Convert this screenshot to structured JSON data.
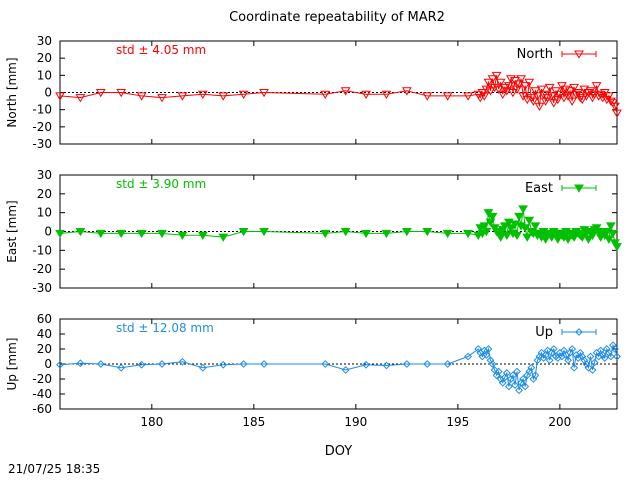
{
  "figure_title": "Coordinate repeatability of MAR2",
  "timestamp": "21/07/25 18:35",
  "chart_data": [
    {
      "type": "line",
      "title": "",
      "xlabel": "",
      "ylabel": "North [mm]",
      "xlim": [
        175.5,
        202.8
      ],
      "ylim": [
        -30,
        30
      ],
      "yticks": [
        -30,
        -20,
        -10,
        0,
        10,
        20,
        30
      ],
      "xticks": [
        180,
        185,
        190,
        195,
        200
      ],
      "show_xtick_labels": false,
      "std_label": "std ± 4.05 mm",
      "color": "#ff0000",
      "marker": "triangle-down-open",
      "legend": "top-right",
      "zero_line": true,
      "series": [
        {
          "name": "North",
          "x": [
            175.5,
            176.5,
            177.5,
            178.5,
            179.5,
            180.5,
            181.5,
            182.5,
            183.5,
            184.5,
            185.5,
            188.5,
            189.5,
            190.5,
            191.5,
            192.5,
            193.5,
            194.5,
            195.5,
            196.0,
            196.1,
            196.2,
            196.3,
            196.4,
            196.5,
            196.6,
            196.7,
            196.8,
            196.9,
            197.0,
            197.1,
            197.2,
            197.3,
            197.4,
            197.5,
            197.6,
            197.7,
            197.8,
            197.9,
            198.0,
            198.1,
            198.2,
            198.3,
            198.4,
            198.5,
            198.6,
            198.7,
            198.8,
            198.9,
            199.0,
            199.1,
            199.2,
            199.3,
            199.4,
            199.5,
            199.6,
            199.7,
            199.8,
            199.9,
            200.0,
            200.1,
            200.2,
            200.3,
            200.4,
            200.5,
            200.6,
            200.7,
            200.8,
            200.9,
            201.0,
            201.1,
            201.2,
            201.3,
            201.4,
            201.5,
            201.6,
            201.7,
            201.8,
            201.9,
            202.0,
            202.1,
            202.2,
            202.3,
            202.4,
            202.5,
            202.6,
            202.7,
            202.8
          ],
          "y": [
            -2,
            -3,
            0,
            0,
            -2,
            -3,
            -2,
            -1,
            -2,
            -1,
            0,
            -1,
            1,
            -1,
            -1,
            1,
            -2,
            -2,
            -2,
            -1,
            -3,
            0,
            -2,
            2,
            6,
            1,
            8,
            3,
            10,
            2,
            6,
            -1,
            3,
            1,
            4,
            8,
            0,
            7,
            2,
            5,
            8,
            -2,
            4,
            -4,
            6,
            -3,
            -5,
            1,
            -2,
            -8,
            2,
            -1,
            -5,
            -3,
            3,
            -2,
            -6,
            1,
            -4,
            -1,
            4,
            -3,
            2,
            -2,
            1,
            -5,
            3,
            -1,
            0,
            -3,
            -4,
            2,
            -2,
            0,
            1,
            -3,
            -1,
            4,
            -2,
            -1,
            -3,
            0,
            -4,
            -2,
            -5,
            -6,
            -8,
            -12
          ]
        }
      ]
    },
    {
      "type": "line",
      "title": "",
      "xlabel": "",
      "ylabel": "East [mm]",
      "xlim": [
        175.5,
        202.8
      ],
      "ylim": [
        -30,
        30
      ],
      "yticks": [
        -30,
        -20,
        -10,
        0,
        10,
        20,
        30
      ],
      "xticks": [
        180,
        185,
        190,
        195,
        200
      ],
      "show_xtick_labels": false,
      "std_label": "std ± 3.90 mm",
      "color": "#00c000",
      "marker": "triangle-down-filled",
      "legend": "top-right",
      "zero_line": true,
      "series": [
        {
          "name": "East",
          "x": [
            175.5,
            176.5,
            177.5,
            178.5,
            179.5,
            180.5,
            181.5,
            182.5,
            183.5,
            184.5,
            185.5,
            188.5,
            189.5,
            190.5,
            191.5,
            192.5,
            193.5,
            194.5,
            195.5,
            196.0,
            196.1,
            196.2,
            196.3,
            196.4,
            196.5,
            196.6,
            196.7,
            196.8,
            196.9,
            197.0,
            197.1,
            197.2,
            197.3,
            197.4,
            197.5,
            197.6,
            197.7,
            197.8,
            197.9,
            198.0,
            198.1,
            198.2,
            198.3,
            198.4,
            198.5,
            198.6,
            198.7,
            198.8,
            198.9,
            199.0,
            199.1,
            199.2,
            199.3,
            199.4,
            199.5,
            199.6,
            199.7,
            199.8,
            199.9,
            200.0,
            200.1,
            200.2,
            200.3,
            200.4,
            200.5,
            200.6,
            200.7,
            200.8,
            200.9,
            201.0,
            201.1,
            201.2,
            201.3,
            201.4,
            201.5,
            201.6,
            201.7,
            201.8,
            201.9,
            202.0,
            202.1,
            202.2,
            202.3,
            202.4,
            202.5,
            202.6,
            202.7,
            202.8
          ],
          "y": [
            -1,
            0,
            -1,
            -1,
            -1,
            -1,
            -2,
            -2,
            -3,
            0,
            0,
            -1,
            0,
            -1,
            -1,
            0,
            0,
            -1,
            -1,
            -2,
            2,
            -1,
            3,
            0,
            10,
            5,
            8,
            2,
            0,
            -1,
            -3,
            1,
            3,
            -2,
            5,
            2,
            -1,
            4,
            -2,
            8,
            3,
            12,
            2,
            -3,
            6,
            0,
            -1,
            3,
            -2,
            -1,
            -3,
            0,
            -4,
            -2,
            -1,
            -3,
            0,
            -2,
            -4,
            -1,
            -2,
            -3,
            0,
            -4,
            -1,
            -2,
            -3,
            0,
            -1,
            -2,
            -3,
            1,
            -1,
            -4,
            0,
            -2,
            1,
            2,
            0,
            -3,
            -1,
            -2,
            0,
            -4,
            3,
            -1,
            -6,
            -8
          ]
        }
      ]
    },
    {
      "type": "line",
      "title": "",
      "xlabel": "DOY",
      "ylabel": "Up [mm]",
      "xlim": [
        175.5,
        202.8
      ],
      "ylim": [
        -60,
        60
      ],
      "yticks": [
        -60,
        -40,
        -20,
        0,
        20,
        40,
        60
      ],
      "xticks": [
        180,
        185,
        190,
        195,
        200
      ],
      "show_xtick_labels": true,
      "std_label": "std ± 12.08 mm",
      "color": "#1e8ce6",
      "marker": "diamond-open",
      "legend": "top-right",
      "zero_line": true,
      "series": [
        {
          "name": "Up",
          "x": [
            175.5,
            176.5,
            177.5,
            178.5,
            179.5,
            180.5,
            181.5,
            182.5,
            183.5,
            184.5,
            185.5,
            188.5,
            189.5,
            190.5,
            191.5,
            192.5,
            193.5,
            194.5,
            195.5,
            196.0,
            196.1,
            196.2,
            196.3,
            196.4,
            196.5,
            196.6,
            196.7,
            196.8,
            196.9,
            197.0,
            197.1,
            197.2,
            197.3,
            197.4,
            197.5,
            197.6,
            197.7,
            197.8,
            197.9,
            198.0,
            198.1,
            198.2,
            198.3,
            198.4,
            198.5,
            198.6,
            198.7,
            198.8,
            198.9,
            199.0,
            199.1,
            199.2,
            199.3,
            199.4,
            199.5,
            199.6,
            199.7,
            199.8,
            199.9,
            200.0,
            200.1,
            200.2,
            200.3,
            200.4,
            200.5,
            200.6,
            200.7,
            200.8,
            200.9,
            201.0,
            201.1,
            201.2,
            201.3,
            201.4,
            201.5,
            201.6,
            201.7,
            201.8,
            201.9,
            202.0,
            202.1,
            202.2,
            202.3,
            202.4,
            202.5,
            202.6,
            202.7,
            202.8
          ],
          "y": [
            -1,
            1,
            0,
            -5,
            -1,
            0,
            3,
            -5,
            -1,
            0,
            0,
            0,
            -8,
            -1,
            -2,
            0,
            0,
            0,
            10,
            20,
            15,
            10,
            18,
            12,
            20,
            5,
            0,
            -8,
            -15,
            -10,
            -20,
            -25,
            -18,
            -12,
            -30,
            -20,
            -15,
            -28,
            -10,
            -35,
            -25,
            -20,
            -30,
            -15,
            -10,
            -5,
            -20,
            -15,
            5,
            10,
            15,
            8,
            12,
            18,
            5,
            15,
            20,
            10,
            8,
            15,
            10,
            18,
            12,
            5,
            15,
            20,
            -5,
            12,
            8,
            15,
            10,
            5,
            0,
            -5,
            10,
            -8,
            2,
            15,
            10,
            18,
            12,
            8,
            20,
            15,
            10,
            25,
            20,
            10
          ]
        }
      ]
    }
  ]
}
